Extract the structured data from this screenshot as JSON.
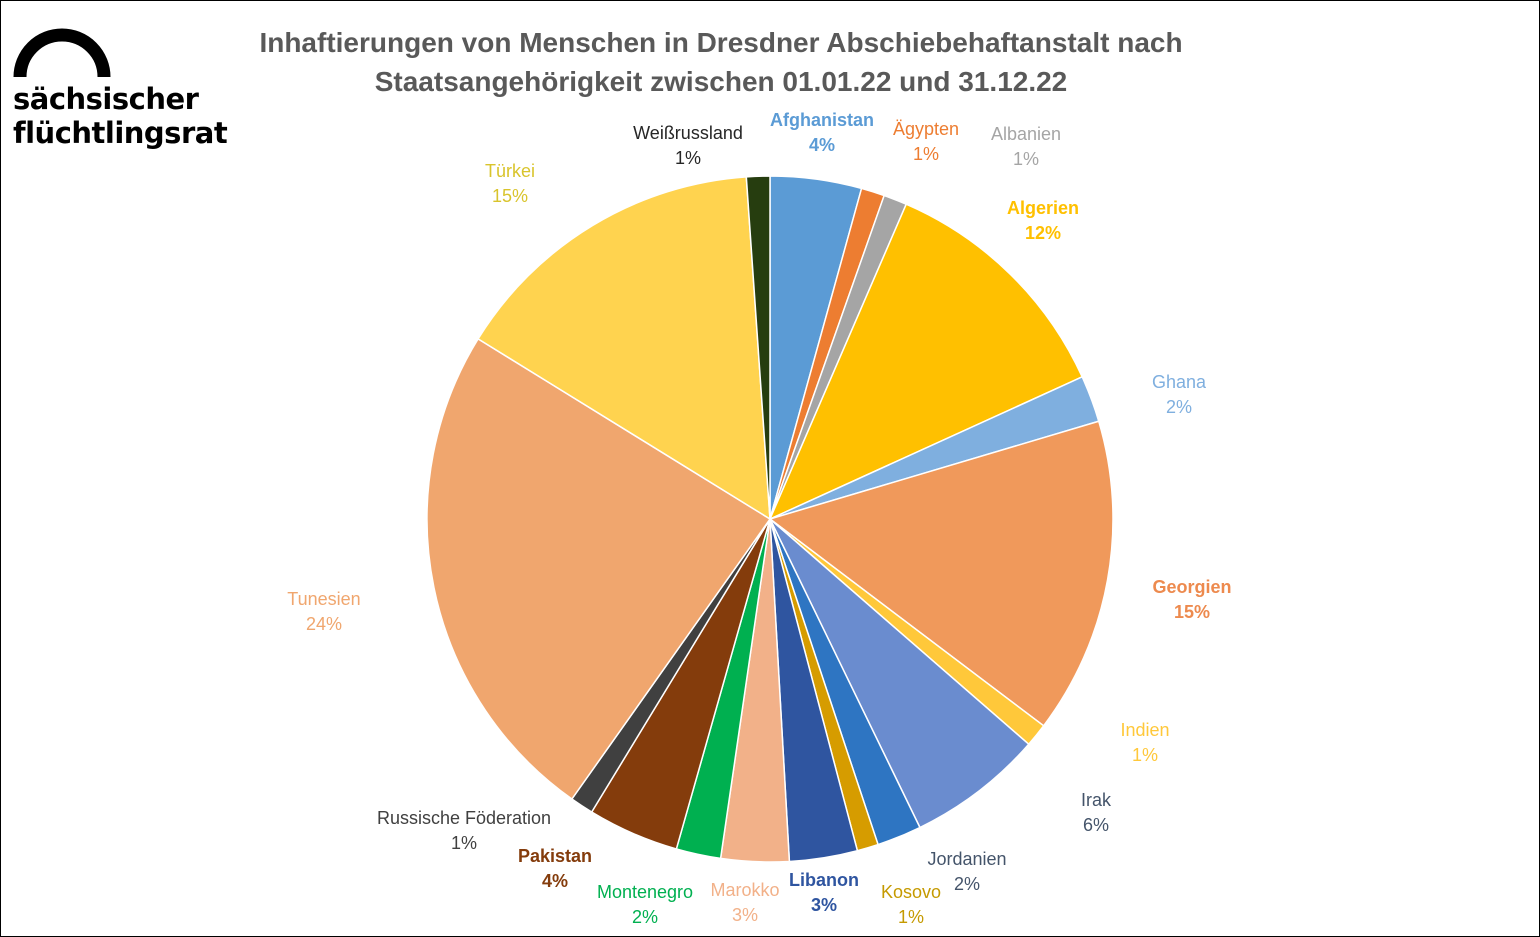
{
  "logo": {
    "line1": "sächsischer",
    "line2": "flüchtlingsrat",
    "icon": "arch-icon"
  },
  "chart_data": {
    "type": "pie",
    "title_line1": "Inhaftierungen von Menschen in Dresdner Abschiebehaftanstalt nach",
    "title_line2": "Staatsangehörigkeit zwischen 01.01.22 und 31.12.22",
    "unit": "%",
    "slices": [
      {
        "name": "Afghanistan",
        "label": "4%",
        "value": 4.3,
        "color": "#5B9BD5",
        "label_color": "#5B9BD5",
        "bold": true
      },
      {
        "name": "Ägypten",
        "label": "1%",
        "value": 1.1,
        "color": "#ED7D31",
        "label_color": "#ED7D31",
        "bold": false
      },
      {
        "name": "Albanien",
        "label": "1%",
        "value": 1.1,
        "color": "#A5A5A5",
        "label_color": "#A5A5A5",
        "bold": false
      },
      {
        "name": "Algerien",
        "label": "12%",
        "value": 11.7,
        "color": "#FFC000",
        "label_color": "#FFC000",
        "bold": true
      },
      {
        "name": "Ghana",
        "label": "2%",
        "value": 2.2,
        "color": "#7FAFDF",
        "label_color": "#7FAFDF",
        "bold": false
      },
      {
        "name": "Georgien",
        "label": "15%",
        "value": 14.9,
        "color": "#F0995B",
        "label_color": "#ED8A4E",
        "bold": true
      },
      {
        "name": "Indien",
        "label": "1%",
        "value": 1.1,
        "color": "#FFC83A",
        "label_color": "#FFC83A",
        "bold": false
      },
      {
        "name": "Irak",
        "label": "6%",
        "value": 6.4,
        "color": "#6A8CCF",
        "label_color": "#44546A",
        "bold": false
      },
      {
        "name": "Jordanien",
        "label": "2%",
        "value": 2.1,
        "color": "#2E75C2",
        "label_color": "#44546A",
        "bold": false
      },
      {
        "name": "Kosovo",
        "label": "1%",
        "value": 1.0,
        "color": "#D69C00",
        "label_color": "#C59A00",
        "bold": false
      },
      {
        "name": "Libanon",
        "label": "3%",
        "value": 3.2,
        "color": "#2F55A0",
        "label_color": "#2F55A0",
        "bold": true
      },
      {
        "name": "Marokko",
        "label": "3%",
        "value": 3.2,
        "color": "#F2B189",
        "label_color": "#F2B189",
        "bold": false
      },
      {
        "name": "Montenegro",
        "label": "2%",
        "value": 2.1,
        "color": "#00B050",
        "label_color": "#00B050",
        "bold": false
      },
      {
        "name": "Pakistan",
        "label": "4%",
        "value": 4.3,
        "color": "#843C0C",
        "label_color": "#843C0C",
        "bold": true
      },
      {
        "name": "Russische Föderation",
        "label": "1%",
        "value": 1.1,
        "color": "#404040",
        "label_color": "#404040",
        "bold": false
      },
      {
        "name": "Tunesien",
        "label": "24%",
        "value": 24.0,
        "color": "#F0A66E",
        "label_color": "#F0A66E",
        "bold": false
      },
      {
        "name": "Türkei",
        "label": "15%",
        "value": 15.1,
        "color": "#FFD34F",
        "label_color": "#D9C42C",
        "bold": false
      },
      {
        "name": "Weißrussland",
        "label": "1%",
        "value": 1.1,
        "color": "#263D0F",
        "label_color": "#262626",
        "bold": false
      }
    ]
  }
}
